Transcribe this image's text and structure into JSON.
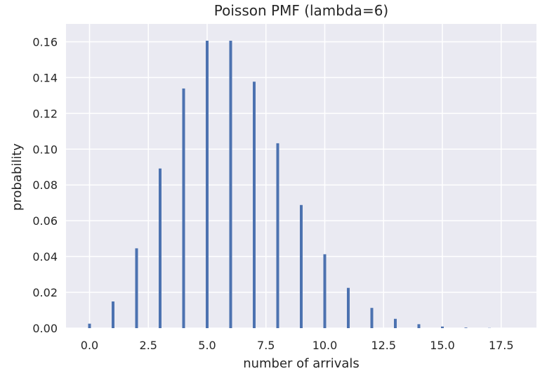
{
  "chart_data": {
    "type": "bar",
    "title": "Poisson PMF (lambda=6)",
    "xlabel": "number of arrivals",
    "ylabel": "probability",
    "xlim": [
      -1,
      19
    ],
    "ylim": [
      0,
      0.17
    ],
    "xticks": [
      0.0,
      2.5,
      5.0,
      7.5,
      10.0,
      12.5,
      15.0,
      17.5
    ],
    "xtick_labels": [
      "0.0",
      "2.5",
      "5.0",
      "7.5",
      "10.0",
      "12.5",
      "15.0",
      "17.5"
    ],
    "yticks": [
      0.0,
      0.02,
      0.04,
      0.06,
      0.08,
      0.1,
      0.12,
      0.14,
      0.16
    ],
    "ytick_labels": [
      "0.00",
      "0.02",
      "0.04",
      "0.06",
      "0.08",
      "0.10",
      "0.12",
      "0.14",
      "0.16"
    ],
    "x": [
      0,
      1,
      2,
      3,
      4,
      5,
      6,
      7,
      8,
      9,
      10,
      11,
      12,
      13,
      14,
      15,
      16,
      17,
      18
    ],
    "values": [
      0.0025,
      0.0149,
      0.0446,
      0.0892,
      0.1339,
      0.1606,
      0.1606,
      0.1377,
      0.1033,
      0.0688,
      0.0413,
      0.0225,
      0.0113,
      0.0052,
      0.0022,
      0.0009,
      0.0003,
      0.0001,
      0.0
    ],
    "grid": true,
    "colors": {
      "bar": "#4c72b0",
      "plot_background": "#eaeaf2",
      "grid": "#ffffff",
      "text": "#262626"
    }
  }
}
